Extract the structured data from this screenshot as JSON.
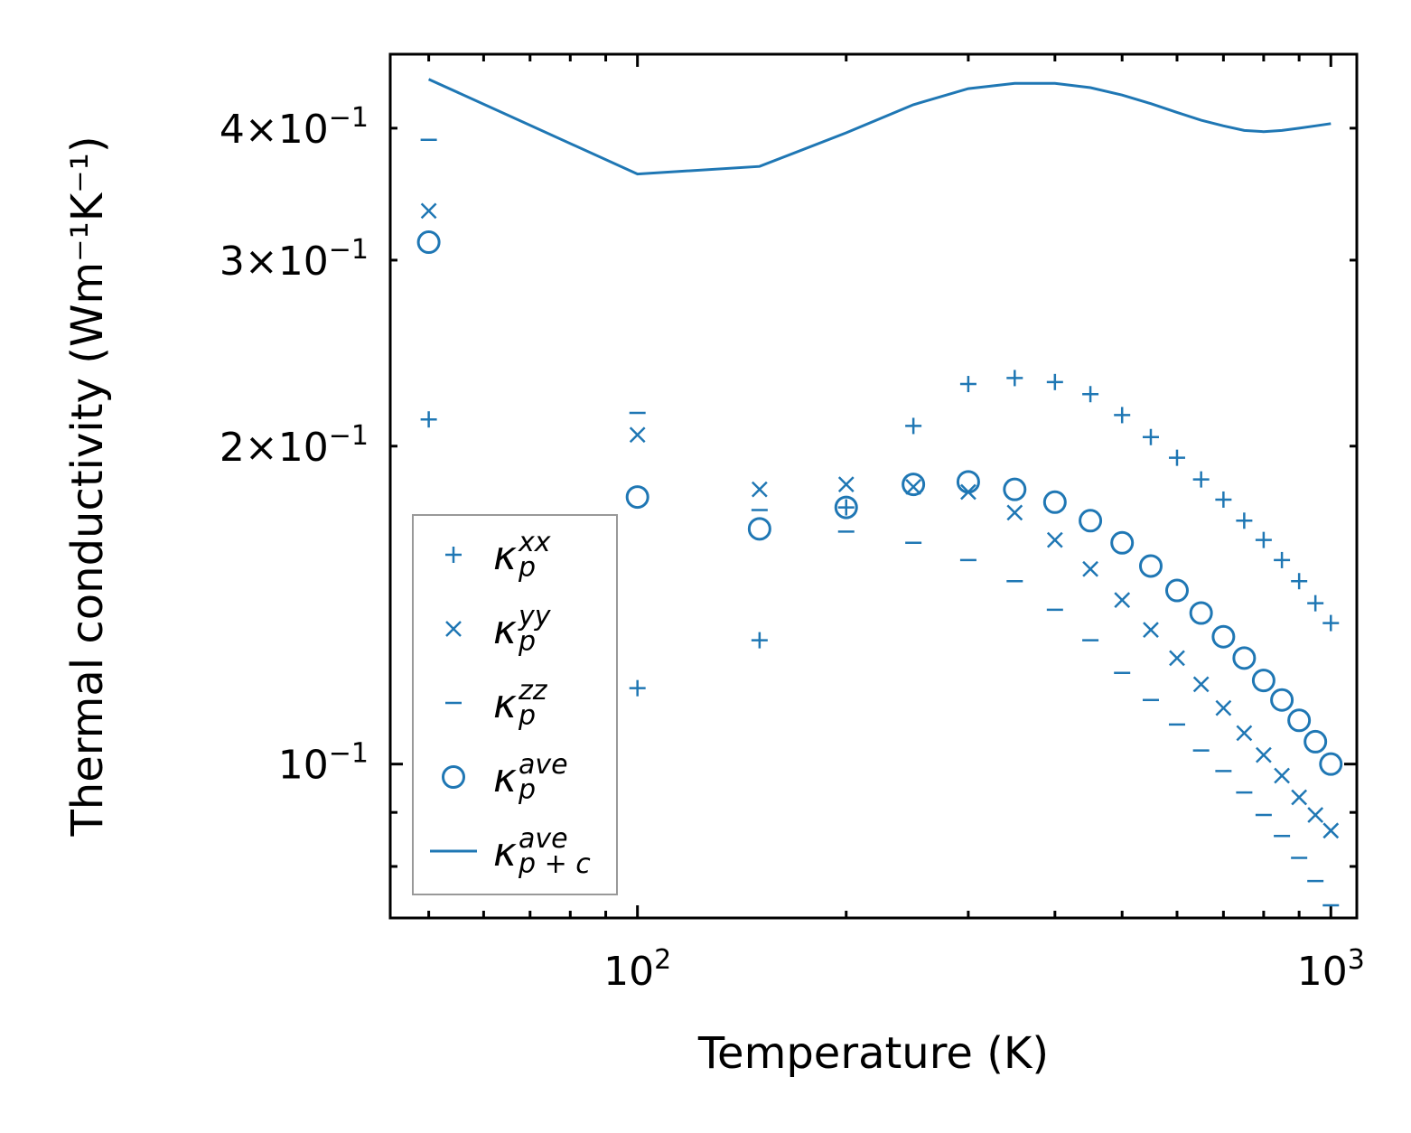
{
  "chart_data": {
    "type": "scatter",
    "xscale": "log",
    "yscale": "log",
    "xlabel": "Temperature (K)",
    "ylabel": "Thermal conductivity (Wm⁻¹K⁻¹)",
    "xlim": [
      44,
      1090
    ],
    "ylim": [
      0.0715,
      0.47
    ],
    "color": "#1f77b4",
    "x_ticks": [
      {
        "value": 100,
        "base": "10",
        "exp": "2"
      },
      {
        "value": 1000,
        "base": "10",
        "exp": "3"
      }
    ],
    "y_ticks": [
      {
        "value": 0.1,
        "base": "10",
        "exp": "−1"
      },
      {
        "value": 0.2,
        "base": "2×10",
        "exp": "−1"
      },
      {
        "value": 0.3,
        "base": "3×10",
        "exp": "−1"
      },
      {
        "value": 0.4,
        "base": "4×10",
        "exp": "−1"
      }
    ],
    "x": [
      50,
      100,
      150,
      200,
      250,
      300,
      350,
      400,
      450,
      500,
      550,
      600,
      650,
      700,
      750,
      800,
      850,
      900,
      950,
      1000
    ],
    "series": [
      {
        "name": "kappa_p_xx",
        "label_base": "κ",
        "label_sub": "p",
        "label_sup": "xx",
        "marker": "plus",
        "values": [
          0.212,
          0.118,
          0.131,
          0.175,
          0.209,
          0.229,
          0.232,
          0.23,
          0.224,
          0.214,
          0.204,
          0.195,
          0.186,
          0.178,
          0.17,
          0.163,
          0.156,
          0.149,
          0.142,
          0.136
        ]
      },
      {
        "name": "kappa_p_yy",
        "label_base": "κ",
        "label_sub": "p",
        "label_sup": "yy",
        "marker": "x",
        "values": [
          0.334,
          0.205,
          0.182,
          0.184,
          0.183,
          0.181,
          0.173,
          0.163,
          0.153,
          0.143,
          0.134,
          0.126,
          0.119,
          0.113,
          0.107,
          0.102,
          0.0975,
          0.093,
          0.0895,
          0.0865
        ]
      },
      {
        "name": "kappa_p_zz",
        "label_base": "κ",
        "label_sub": "p",
        "label_sup": "zz",
        "marker": "hline",
        "values": [
          0.39,
          0.215,
          0.174,
          0.166,
          0.162,
          0.156,
          0.149,
          0.14,
          0.131,
          0.122,
          0.115,
          0.109,
          0.103,
          0.0985,
          0.094,
          0.0895,
          0.0855,
          0.0815,
          0.0775,
          0.0735
        ]
      },
      {
        "name": "kappa_p_ave",
        "label_base": "κ",
        "label_sub": "p",
        "label_sup": "ave",
        "marker": "circle",
        "values": [
          0.312,
          0.179,
          0.167,
          0.175,
          0.184,
          0.185,
          0.182,
          0.177,
          0.17,
          0.162,
          0.154,
          0.146,
          0.139,
          0.132,
          0.126,
          0.12,
          0.115,
          0.11,
          0.105,
          0.1
        ]
      },
      {
        "name": "kappa_pc_ave",
        "label_base": "κ",
        "label_sub": "p + c",
        "label_sup": "ave",
        "marker": "line",
        "values": [
          0.445,
          0.362,
          0.368,
          0.396,
          0.421,
          0.436,
          0.441,
          0.441,
          0.437,
          0.43,
          0.422,
          0.414,
          0.407,
          0.402,
          0.398,
          0.397,
          0.398,
          0.4,
          0.402,
          0.404
        ]
      }
    ],
    "legend": {
      "position": "lower-left",
      "entries": [
        0,
        1,
        2,
        3,
        4
      ]
    },
    "grid": false
  }
}
